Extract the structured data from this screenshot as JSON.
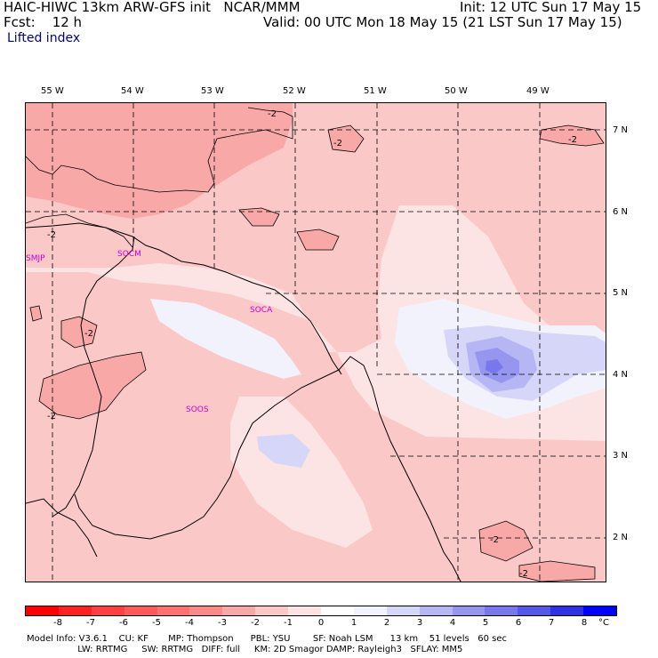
{
  "header": {
    "model_title": "HAIC-HIWC 13km ARW-GFS init   NCAR/MMM",
    "init_time": "Init: 12 UTC Sun 17 May 15",
    "forecast_label": "Fcst:    12 h",
    "valid_time": "Valid: 00 UTC Mon 18 May 15 (21 LST Sun 17 May 15)",
    "field_name": "Lifted index"
  },
  "map": {
    "longitude_labels": [
      "55 W",
      "54 W",
      "53 W",
      "52 W",
      "51 W",
      "50 W",
      "49 W"
    ],
    "latitude_labels": [
      "7 N",
      "6 N",
      "5 N",
      "4 N",
      "3 N",
      "2 N"
    ],
    "stations": [
      "SMJP",
      "SOCM",
      "SOCA",
      "SOOS"
    ],
    "contour_label": "-2"
  },
  "colorbar": {
    "ticks": [
      "-8",
      "-7",
      "-6",
      "-5",
      "-4",
      "-3",
      "-2",
      "-1",
      "0",
      "1",
      "2",
      "3",
      "4",
      "5",
      "6",
      "7",
      "8"
    ],
    "unit": "°C",
    "colors": [
      "#ff0000",
      "#ff2020",
      "#ff4040",
      "#ff5a5a",
      "#ff7070",
      "#f98a8a",
      "#f9a8a8",
      "#fbc8c8",
      "#fde4e4",
      "#f2f2fc",
      "#d6d6f8",
      "#b6b6f4",
      "#9696f0",
      "#7878ec",
      "#5656e8",
      "#3030e4",
      "#0000ff"
    ],
    "legend_order_note_removed": ""
  },
  "model_info": {
    "line1": "Model Info: V3.6.1    CU: KF       MP: Thompson      PBL: YSU        SF: Noah LSM      13 km    51 levels   60 sec",
    "line2": "                  LW: RRTMG     SW: RRTMG   DIFF: full     KM: 2D Smagor DAMP: Rayleigh3   SFLAY: MM5"
  }
}
